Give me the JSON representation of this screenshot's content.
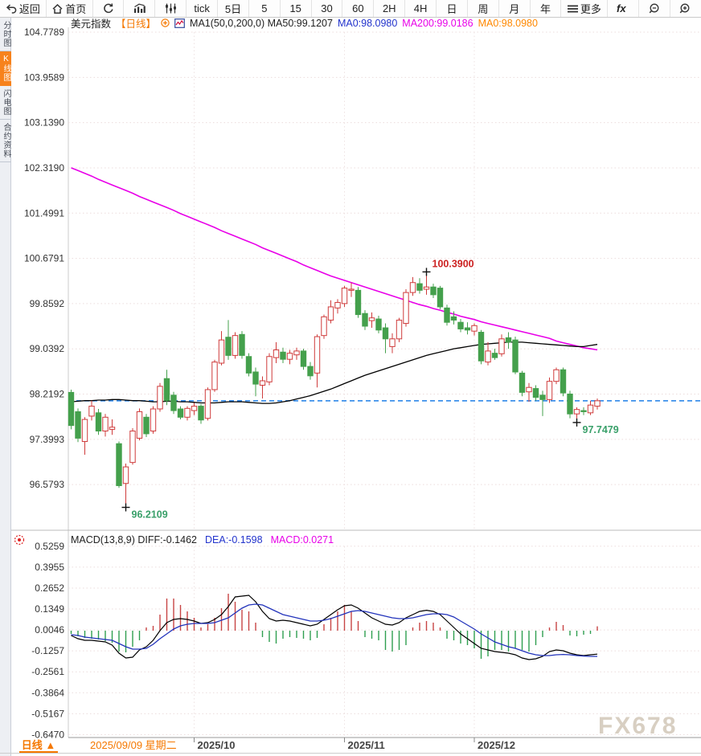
{
  "toolbar": {
    "items": [
      {
        "id": "back",
        "icon": "back-arrow",
        "label": "返回",
        "wide": true
      },
      {
        "id": "home",
        "icon": "home",
        "label": "首页",
        "wide": true
      },
      {
        "id": "refresh",
        "icon": "refresh",
        "label": ""
      },
      {
        "id": "chart-style-bar",
        "icon": "bar-chart",
        "label": ""
      },
      {
        "id": "chart-style-candle",
        "icon": "sliders",
        "label": ""
      },
      {
        "id": "interval-tick",
        "icon": "",
        "label": "tick"
      },
      {
        "id": "interval-5d",
        "icon": "",
        "label": "5日"
      },
      {
        "id": "interval-5m",
        "icon": "",
        "label": "5"
      },
      {
        "id": "interval-15m",
        "icon": "",
        "label": "15"
      },
      {
        "id": "interval-30m",
        "icon": "",
        "label": "30"
      },
      {
        "id": "interval-60m",
        "icon": "",
        "label": "60"
      },
      {
        "id": "interval-2h",
        "icon": "",
        "label": "2H"
      },
      {
        "id": "interval-4h",
        "icon": "",
        "label": "4H"
      },
      {
        "id": "interval-day",
        "icon": "",
        "label": "日"
      },
      {
        "id": "interval-week",
        "icon": "",
        "label": "周"
      },
      {
        "id": "interval-month",
        "icon": "",
        "label": "月"
      },
      {
        "id": "interval-year",
        "icon": "",
        "label": "年"
      },
      {
        "id": "more",
        "icon": "menu",
        "label": "更多",
        "wide": true
      },
      {
        "id": "indicators-fx",
        "icon": "fx",
        "label": ""
      },
      {
        "id": "zoom-out",
        "icon": "zoom-out",
        "label": ""
      },
      {
        "id": "zoom-in",
        "icon": "zoom-in",
        "label": ""
      }
    ]
  },
  "sidebar": {
    "tabs": [
      {
        "id": "time-share",
        "label": "分时图",
        "active": false
      },
      {
        "id": "kline",
        "label": "K线图",
        "active": true
      },
      {
        "id": "lightning",
        "label": "闪电图",
        "active": false
      },
      {
        "id": "contract-info",
        "label": "合约资料",
        "active": false
      }
    ]
  },
  "symbol_header": {
    "segments": [
      {
        "text": "美元指数",
        "color": "#222222"
      },
      {
        "text": "【日线】",
        "color": "#f57800"
      },
      {
        "text": "MA1(50,0,200,0) MA50:99.1207",
        "color": "#222222"
      },
      {
        "text": "MA0:98.0980",
        "color": "#2233cc"
      },
      {
        "text": "MA200:99.0186",
        "color": "#e800e8"
      },
      {
        "text": "MA0:98.0980",
        "color": "#ff8800"
      }
    ]
  },
  "macd_header": {
    "segments": [
      {
        "text": "MACD(13,8,9) DIFF:-0.1462",
        "color": "#222222"
      },
      {
        "text": "DEA:-0.1598",
        "color": "#2233cc"
      },
      {
        "text": "MACD:0.0271",
        "color": "#e800e8"
      }
    ]
  },
  "x_axis": {
    "period_label": "日线 ▲",
    "first_date_label": "2025/09/09 星期二",
    "month_ticks": [
      {
        "index": 18,
        "label": "2025/10"
      },
      {
        "index": 40,
        "label": "2025/11"
      },
      {
        "index": 59,
        "label": "2025/12"
      }
    ]
  },
  "watermark": "FX678",
  "colors": {
    "up": "#cf3b3b",
    "down": "#44a04c",
    "ma50": "#000000",
    "ma200": "#e800e8",
    "dea": "#2233bb",
    "diff": "#000000",
    "grid": "#ecdcdc",
    "price_line": "#1f7fe8",
    "annotation_high": "#cc2222",
    "annotation_low": "#3aa06a",
    "axis_text": "#333333",
    "watermark": "#d8cfc2",
    "orange": "#f57800"
  },
  "chart_data": {
    "type": "candlestick+macd",
    "title": "美元指数 日线",
    "price_ticks": [
      104.7789,
      103.9589,
      103.139,
      102.319,
      101.4991,
      100.6791,
      99.8592,
      99.0392,
      98.2192,
      97.3993,
      96.5793
    ],
    "macd_ticks": [
      0.5259,
      0.3955,
      0.2652,
      0.1349,
      0.0046,
      -0.1257,
      -0.2561,
      -0.3864,
      -0.5167,
      -0.647
    ],
    "current_price": 98.098,
    "annotations": [
      {
        "index": 52,
        "type": "high",
        "label": "100.3900"
      },
      {
        "index": 8,
        "type": "low",
        "label": "96.2109"
      },
      {
        "index": 74,
        "type": "low",
        "label": "97.7479"
      }
    ],
    "candles": [
      [
        98.25,
        98.3,
        97.58,
        97.65
      ],
      [
        97.9,
        97.96,
        97.35,
        97.42
      ],
      [
        97.36,
        97.8,
        97.12,
        97.76
      ],
      [
        97.82,
        98.1,
        97.74,
        98.0
      ],
      [
        97.88,
        97.95,
        97.48,
        97.55
      ],
      [
        97.55,
        97.86,
        97.45,
        97.8
      ],
      [
        97.58,
        97.76,
        97.48,
        97.62
      ],
      [
        97.32,
        97.36,
        96.52,
        96.56
      ],
      [
        96.6,
        96.96,
        96.21,
        96.9
      ],
      [
        96.98,
        97.6,
        96.94,
        97.55
      ],
      [
        97.42,
        97.96,
        97.38,
        97.9
      ],
      [
        97.8,
        97.86,
        97.44,
        97.5
      ],
      [
        97.55,
        98.0,
        97.5,
        97.95
      ],
      [
        97.95,
        98.42,
        97.9,
        98.36
      ],
      [
        98.5,
        98.66,
        98.02,
        98.1
      ],
      [
        98.2,
        98.26,
        97.86,
        97.92
      ],
      [
        97.95,
        98.0,
        97.76,
        97.8
      ],
      [
        97.8,
        98.0,
        97.74,
        97.96
      ],
      [
        97.92,
        98.06,
        97.84,
        98.0
      ],
      [
        98.0,
        98.04,
        97.68,
        97.75
      ],
      [
        97.78,
        98.34,
        97.74,
        98.3
      ],
      [
        98.3,
        98.84,
        98.26,
        98.8
      ],
      [
        98.78,
        99.36,
        98.74,
        99.2
      ],
      [
        99.25,
        99.56,
        98.84,
        98.92
      ],
      [
        98.92,
        99.34,
        98.86,
        99.28
      ],
      [
        99.3,
        99.36,
        98.86,
        98.92
      ],
      [
        98.9,
        98.96,
        98.54,
        98.6
      ],
      [
        98.62,
        98.7,
        98.18,
        98.4
      ],
      [
        98.38,
        98.54,
        98.14,
        98.46
      ],
      [
        98.44,
        98.96,
        98.38,
        98.9
      ],
      [
        98.88,
        99.16,
        98.78,
        99.02
      ],
      [
        98.98,
        99.06,
        98.78,
        98.85
      ],
      [
        98.85,
        99.02,
        98.76,
        98.96
      ],
      [
        98.93,
        99.06,
        98.84,
        99.0
      ],
      [
        99.0,
        99.04,
        98.66,
        98.72
      ],
      [
        98.72,
        98.8,
        98.48,
        98.55
      ],
      [
        98.6,
        99.3,
        98.34,
        99.26
      ],
      [
        99.28,
        99.66,
        99.22,
        99.62
      ],
      [
        99.56,
        99.92,
        99.5,
        99.8
      ],
      [
        99.78,
        99.94,
        99.68,
        99.88
      ],
      [
        99.86,
        100.18,
        99.8,
        100.14
      ],
      [
        100.1,
        100.24,
        99.98,
        100.12
      ],
      [
        100.1,
        100.16,
        99.6,
        99.66
      ],
      [
        99.68,
        99.74,
        99.38,
        99.45
      ],
      [
        99.55,
        99.7,
        99.42,
        99.6
      ],
      [
        99.58,
        99.64,
        99.32,
        99.38
      ],
      [
        99.42,
        99.5,
        98.96,
        99.22
      ],
      [
        99.08,
        99.32,
        98.96,
        99.22
      ],
      [
        99.22,
        99.6,
        99.16,
        99.56
      ],
      [
        99.5,
        100.12,
        99.44,
        100.06
      ],
      [
        100.06,
        100.34,
        100.0,
        100.24
      ],
      [
        100.22,
        100.32,
        100.04,
        100.1
      ],
      [
        100.12,
        100.39,
        100.02,
        100.16
      ],
      [
        100.16,
        100.22,
        99.96,
        100.02
      ],
      [
        100.14,
        100.18,
        99.76,
        99.8
      ],
      [
        99.78,
        99.84,
        99.46,
        99.52
      ],
      [
        99.62,
        99.72,
        99.48,
        99.56
      ],
      [
        99.52,
        99.58,
        99.34,
        99.4
      ],
      [
        99.42,
        99.52,
        99.3,
        99.38
      ],
      [
        99.36,
        99.5,
        99.28,
        99.46
      ],
      [
        99.34,
        99.38,
        98.76,
        98.82
      ],
      [
        98.8,
        99.16,
        98.74,
        99.0
      ],
      [
        98.96,
        99.04,
        98.84,
        98.88
      ],
      [
        98.95,
        99.3,
        98.9,
        99.22
      ],
      [
        99.24,
        99.34,
        99.04,
        99.16
      ],
      [
        99.2,
        99.26,
        98.58,
        98.62
      ],
      [
        98.6,
        98.64,
        98.18,
        98.25
      ],
      [
        98.26,
        98.42,
        98.08,
        98.34
      ],
      [
        98.32,
        98.38,
        98.1,
        98.16
      ],
      [
        98.2,
        98.28,
        97.82,
        98.12
      ],
      [
        98.12,
        98.52,
        98.06,
        98.45
      ],
      [
        98.45,
        98.7,
        98.4,
        98.66
      ],
      [
        98.66,
        98.7,
        98.18,
        98.24
      ],
      [
        98.22,
        98.28,
        97.78,
        97.86
      ],
      [
        97.86,
        97.98,
        97.7479,
        97.94
      ],
      [
        97.92,
        97.98,
        97.84,
        97.9
      ],
      [
        97.88,
        98.1,
        97.84,
        98.02
      ],
      [
        98.0,
        98.14,
        97.94,
        98.098
      ]
    ],
    "ma50": [
      98.08,
      98.09,
      98.1,
      98.1,
      98.11,
      98.11,
      98.12,
      98.12,
      98.11,
      98.1,
      98.1,
      98.09,
      98.08,
      98.08,
      98.09,
      98.09,
      98.08,
      98.08,
      98.07,
      98.06,
      98.06,
      98.06,
      98.07,
      98.08,
      98.08,
      98.08,
      98.07,
      98.06,
      98.05,
      98.05,
      98.06,
      98.08,
      98.1,
      98.13,
      98.16,
      98.19,
      98.23,
      98.27,
      98.31,
      98.36,
      98.41,
      98.46,
      98.51,
      98.56,
      98.6,
      98.64,
      98.68,
      98.72,
      98.76,
      98.8,
      98.84,
      98.88,
      98.92,
      98.95,
      98.98,
      99.01,
      99.04,
      99.06,
      99.08,
      99.1,
      99.12,
      99.13,
      99.14,
      99.15,
      99.16,
      99.16,
      99.16,
      99.15,
      99.14,
      99.13,
      99.12,
      99.11,
      99.1,
      99.09,
      99.08,
      99.08,
      99.1,
      99.12
    ],
    "ma200": [
      102.32,
      102.27,
      102.22,
      102.17,
      102.11,
      102.06,
      102.01,
      101.96,
      101.91,
      101.86,
      101.8,
      101.75,
      101.7,
      101.65,
      101.6,
      101.55,
      101.49,
      101.44,
      101.39,
      101.34,
      101.29,
      101.24,
      101.18,
      101.13,
      101.08,
      101.03,
      100.98,
      100.93,
      100.87,
      100.82,
      100.77,
      100.72,
      100.67,
      100.62,
      100.56,
      100.51,
      100.46,
      100.41,
      100.36,
      100.32,
      100.28,
      100.24,
      100.2,
      100.16,
      100.12,
      100.08,
      100.04,
      100.0,
      99.96,
      99.92,
      99.88,
      99.84,
      99.81,
      99.77,
      99.74,
      99.7,
      99.67,
      99.63,
      99.6,
      99.57,
      99.53,
      99.5,
      99.47,
      99.44,
      99.41,
      99.38,
      99.35,
      99.32,
      99.29,
      99.26,
      99.23,
      99.18,
      99.15,
      99.12,
      99.09,
      99.06,
      99.04,
      99.02
    ],
    "macd": {
      "diff": [
        -0.03,
        -0.05,
        -0.06,
        -0.06,
        -0.065,
        -0.07,
        -0.09,
        -0.14,
        -0.17,
        -0.165,
        -0.12,
        -0.1,
        -0.06,
        0.0,
        0.05,
        0.07,
        0.075,
        0.07,
        0.06,
        0.045,
        0.05,
        0.07,
        0.1,
        0.15,
        0.21,
        0.215,
        0.22,
        0.18,
        0.12,
        0.075,
        0.06,
        0.065,
        0.06,
        0.05,
        0.04,
        0.03,
        0.04,
        0.07,
        0.1,
        0.13,
        0.155,
        0.16,
        0.14,
        0.11,
        0.08,
        0.06,
        0.04,
        0.035,
        0.05,
        0.08,
        0.1,
        0.12,
        0.127,
        0.12,
        0.1,
        0.06,
        0.02,
        -0.02,
        -0.05,
        -0.08,
        -0.11,
        -0.12,
        -0.13,
        -0.135,
        -0.14,
        -0.15,
        -0.17,
        -0.18,
        -0.175,
        -0.16,
        -0.13,
        -0.12,
        -0.125,
        -0.14,
        -0.15,
        -0.155,
        -0.15,
        -0.1462
      ],
      "dea": [
        -0.025,
        -0.03,
        -0.04,
        -0.045,
        -0.05,
        -0.055,
        -0.06,
        -0.08,
        -0.1,
        -0.115,
        -0.115,
        -0.11,
        -0.085,
        -0.05,
        -0.02,
        0.01,
        0.03,
        0.04,
        0.045,
        0.045,
        0.045,
        0.05,
        0.065,
        0.08,
        0.11,
        0.14,
        0.16,
        0.165,
        0.16,
        0.14,
        0.12,
        0.1,
        0.09,
        0.08,
        0.07,
        0.06,
        0.06,
        0.065,
        0.075,
        0.09,
        0.105,
        0.12,
        0.125,
        0.12,
        0.11,
        0.1,
        0.09,
        0.08,
        0.075,
        0.075,
        0.08,
        0.09,
        0.1,
        0.105,
        0.105,
        0.1,
        0.085,
        0.06,
        0.035,
        0.01,
        -0.02,
        -0.045,
        -0.07,
        -0.085,
        -0.1,
        -0.11,
        -0.125,
        -0.14,
        -0.15,
        -0.155,
        -0.155,
        -0.15,
        -0.148,
        -0.15,
        -0.155,
        -0.158,
        -0.16,
        -0.1598
      ],
      "hist": [
        -0.02,
        -0.035,
        -0.045,
        -0.05,
        -0.055,
        -0.065,
        -0.075,
        -0.13,
        -0.135,
        -0.1,
        -0.06,
        0.02,
        0.03,
        0.1,
        0.2,
        0.2,
        0.16,
        0.12,
        0.08,
        0.02,
        0.04,
        0.08,
        0.14,
        0.23,
        0.18,
        0.13,
        0.12,
        0.05,
        -0.04,
        -0.07,
        -0.08,
        -0.05,
        -0.04,
        -0.045,
        -0.05,
        -0.06,
        -0.045,
        0.04,
        0.08,
        0.12,
        0.16,
        0.12,
        0.06,
        -0.04,
        -0.05,
        -0.06,
        -0.12,
        -0.13,
        -0.12,
        -0.09,
        0.02,
        0.05,
        0.06,
        0.05,
        0.02,
        -0.05,
        -0.06,
        -0.08,
        -0.09,
        -0.11,
        -0.175,
        -0.16,
        -0.12,
        -0.12,
        -0.13,
        -0.11,
        -0.12,
        -0.13,
        -0.09,
        -0.04,
        0.02,
        0.055,
        0.035,
        -0.03,
        -0.035,
        -0.025,
        -0.02,
        0.0271
      ]
    }
  }
}
